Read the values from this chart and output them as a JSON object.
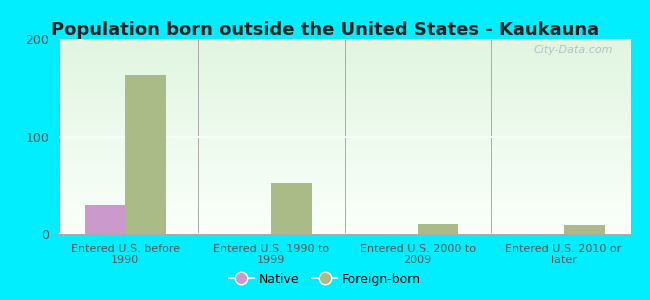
{
  "title": "Population born outside the United States - Kaukauna",
  "categories": [
    "Entered U.S. before\n1990",
    "Entered U.S. 1990 to\n1999",
    "Entered U.S. 2000 to\n2009",
    "Entered U.S. 2010 or\nlater"
  ],
  "native_values": [
    30,
    0,
    0,
    0
  ],
  "foreign_values": [
    163,
    52,
    10,
    9
  ],
  "native_color": "#cc99cc",
  "foreign_color": "#aabb88",
  "ylim": [
    0,
    200
  ],
  "yticks": [
    0,
    100,
    200
  ],
  "outer_bg": "#00eeff",
  "bar_width": 0.28,
  "title_fontsize": 13,
  "watermark": "City-Data.com"
}
